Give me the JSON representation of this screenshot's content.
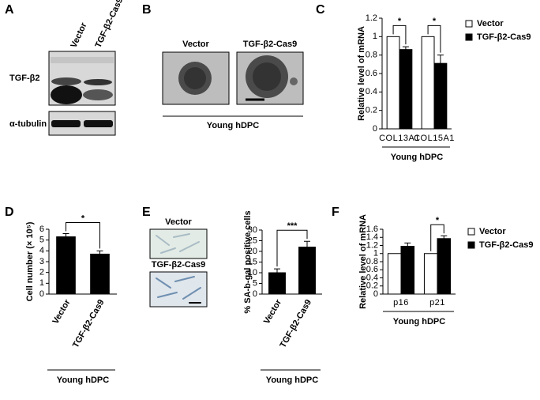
{
  "panel_labels": [
    "A",
    "B",
    "C",
    "D",
    "E",
    "F"
  ],
  "blot": {
    "lanes": [
      "Vector",
      "TGF-β2-Cas9"
    ],
    "rows": [
      "TGF-β2",
      "α-tubulin"
    ]
  },
  "micrographs_b": {
    "labels": [
      "Vector",
      "TGF-β2-Cas9"
    ],
    "caption": "Young  hDPC"
  },
  "micrographs_e": {
    "labels": [
      "Vector",
      "TGF-β2-Cas9"
    ]
  },
  "chart_data": [
    {
      "type": "bar",
      "ylabel": "Relative level of mRNA",
      "categories": [
        "COL13A1",
        "COL15A1"
      ],
      "series": [
        {
          "name": "Vector",
          "color": "#ffffff",
          "values": [
            1,
            1
          ]
        },
        {
          "name": "TGF-β2-Cas9",
          "color": "#000000",
          "values": [
            0.86,
            0.71
          ],
          "errors": [
            0.03,
            0.09
          ]
        }
      ],
      "significance": [
        "*",
        "*"
      ],
      "group_label": "Young  hDPC",
      "ylim": [
        0,
        1.2
      ],
      "yticks": [
        0,
        0.2,
        0.4,
        0.6,
        0.8,
        1,
        1.2
      ],
      "legend": "right"
    },
    {
      "type": "bar",
      "ylabel": "Cell number (× 10⁵)",
      "categories": [
        "Vector",
        "TGF-β2-Cas9"
      ],
      "values": [
        5.3,
        3.7
      ],
      "errors": [
        0.3,
        0.3
      ],
      "color": "#000000",
      "significance": "*",
      "group_label": "Young  hDPC",
      "ylim": [
        0,
        6
      ],
      "yticks": [
        0,
        1,
        2,
        3,
        4,
        5,
        6
      ]
    },
    {
      "type": "bar",
      "ylabel": "% SA-b-gal positive cells",
      "categories": [
        "Vector",
        "TGF-β2-Cas9"
      ],
      "values": [
        10,
        22
      ],
      "errors": [
        1.8,
        2.7
      ],
      "color": "#000000",
      "significance": "***",
      "group_label": "Young  hDPC",
      "ylim": [
        0,
        30
      ],
      "yticks": [
        0,
        5,
        10,
        15,
        20,
        25,
        30
      ]
    },
    {
      "type": "bar",
      "ylabel": "Relative level of mRNA",
      "categories": [
        "p16",
        "p21"
      ],
      "series": [
        {
          "name": "Vector",
          "color": "#ffffff",
          "values": [
            1,
            1
          ]
        },
        {
          "name": "TGF-β2-Cas9",
          "color": "#000000",
          "values": [
            1.18,
            1.37
          ],
          "errors": [
            0.08,
            0.07
          ]
        }
      ],
      "significance": [
        null,
        "*"
      ],
      "group_label": "Young  hDPC",
      "ylim": [
        0,
        1.6
      ],
      "yticks": [
        0,
        0.2,
        0.4,
        0.6,
        0.8,
        1,
        1.2,
        1.4,
        1.6
      ],
      "legend": "right"
    }
  ]
}
